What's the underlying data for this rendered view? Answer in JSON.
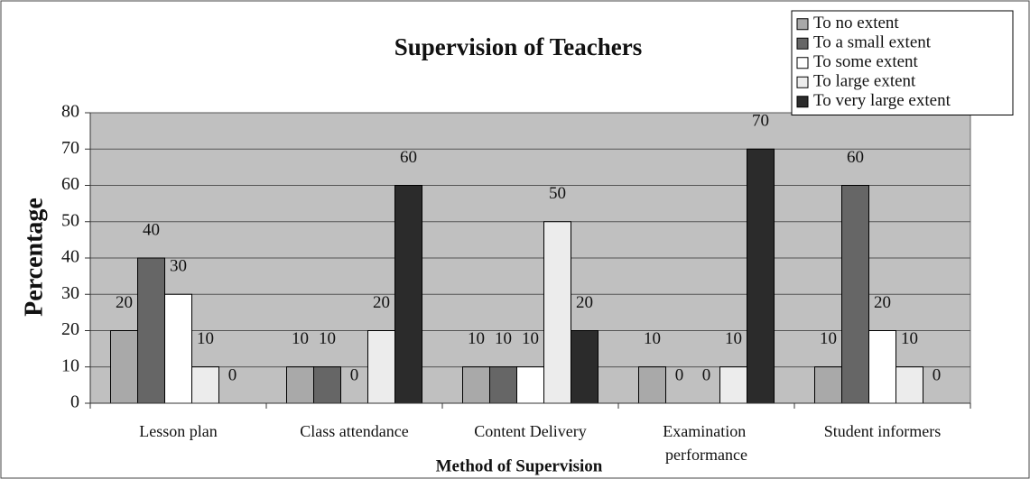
{
  "chart_data": {
    "type": "bar",
    "title": "Supervision of Teachers",
    "x_label": "Method of Supervision",
    "y_label": "Percentage",
    "categories": [
      "Lesson plan",
      "Class attendance",
      "Content Delivery",
      "Examination performance",
      "Student informers"
    ],
    "series": [
      {
        "name": "To no extent",
        "color": "#a9a9a9",
        "values": [
          20,
          10,
          10,
          10,
          10
        ]
      },
      {
        "name": "To a small extent",
        "color": "#666666",
        "values": [
          40,
          10,
          10,
          0,
          60
        ]
      },
      {
        "name": "To some extent",
        "color": "#ffffff",
        "values": [
          30,
          0,
          10,
          0,
          20
        ]
      },
      {
        "name": "To large extent",
        "color": "#ececec",
        "values": [
          10,
          20,
          50,
          10,
          10
        ]
      },
      {
        "name": "To very large extent",
        "color": "#2b2b2b",
        "values": [
          0,
          60,
          20,
          70,
          0
        ]
      }
    ],
    "ylim": [
      0,
      80
    ],
    "yticks": [
      0,
      10,
      20,
      30,
      40,
      50,
      60,
      70,
      80
    ],
    "grid": true,
    "legend": "top-right"
  }
}
